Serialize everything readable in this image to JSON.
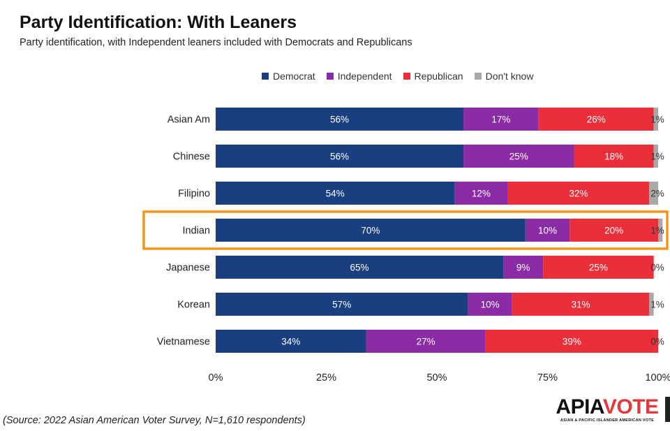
{
  "title": "Party Identification: With Leaners",
  "subtitle": "Party identification, with Independent leaners included with Democrats and Republicans",
  "source": "(Source: 2022 Asian American Voter Survey, N=1,610 respondents)",
  "logo": {
    "text_part1": "APIA",
    "text_part2": "VOTE",
    "tagline": "ASIAN & PACIFIC ISLANDER AMERICAN VOTE"
  },
  "highlight_color": "#f0961e",
  "chart_data": {
    "type": "bar",
    "orientation": "horizontal",
    "stacked": true,
    "categories": [
      "Asian Am",
      "Chinese",
      "Filipino",
      "Indian",
      "Japanese",
      "Korean",
      "Vietnamese"
    ],
    "series": [
      {
        "name": "Democrat",
        "color": "#1a3f80",
        "values": [
          56,
          56,
          54,
          70,
          65,
          57,
          34
        ]
      },
      {
        "name": "Independent",
        "color": "#8b2ba6",
        "values": [
          17,
          25,
          12,
          10,
          9,
          10,
          27
        ]
      },
      {
        "name": "Republican",
        "color": "#ea2f3b",
        "values": [
          26,
          18,
          32,
          20,
          25,
          31,
          39
        ]
      },
      {
        "name": "Don't know",
        "color": "#a8a8a8",
        "values": [
          1,
          1,
          2,
          1,
          0,
          1,
          0
        ]
      }
    ],
    "data_labels": [
      [
        "56%",
        "17%",
        "26%",
        "1%"
      ],
      [
        "56%",
        "25%",
        "18%",
        "1%"
      ],
      [
        "54%",
        "12%",
        "32%",
        "2%"
      ],
      [
        "70%",
        "10%",
        "20%",
        "1%"
      ],
      [
        "65%",
        "9%",
        "25%",
        "0%"
      ],
      [
        "57%",
        "10%",
        "31%",
        "1%"
      ],
      [
        "34%",
        "27%",
        "39%",
        "0%"
      ]
    ],
    "x_ticks": [
      "0%",
      "25%",
      "50%",
      "75%",
      "100%"
    ],
    "xlim": [
      0,
      100
    ],
    "highlighted_category": "Indian",
    "legend_position": "top",
    "grid": false
  }
}
